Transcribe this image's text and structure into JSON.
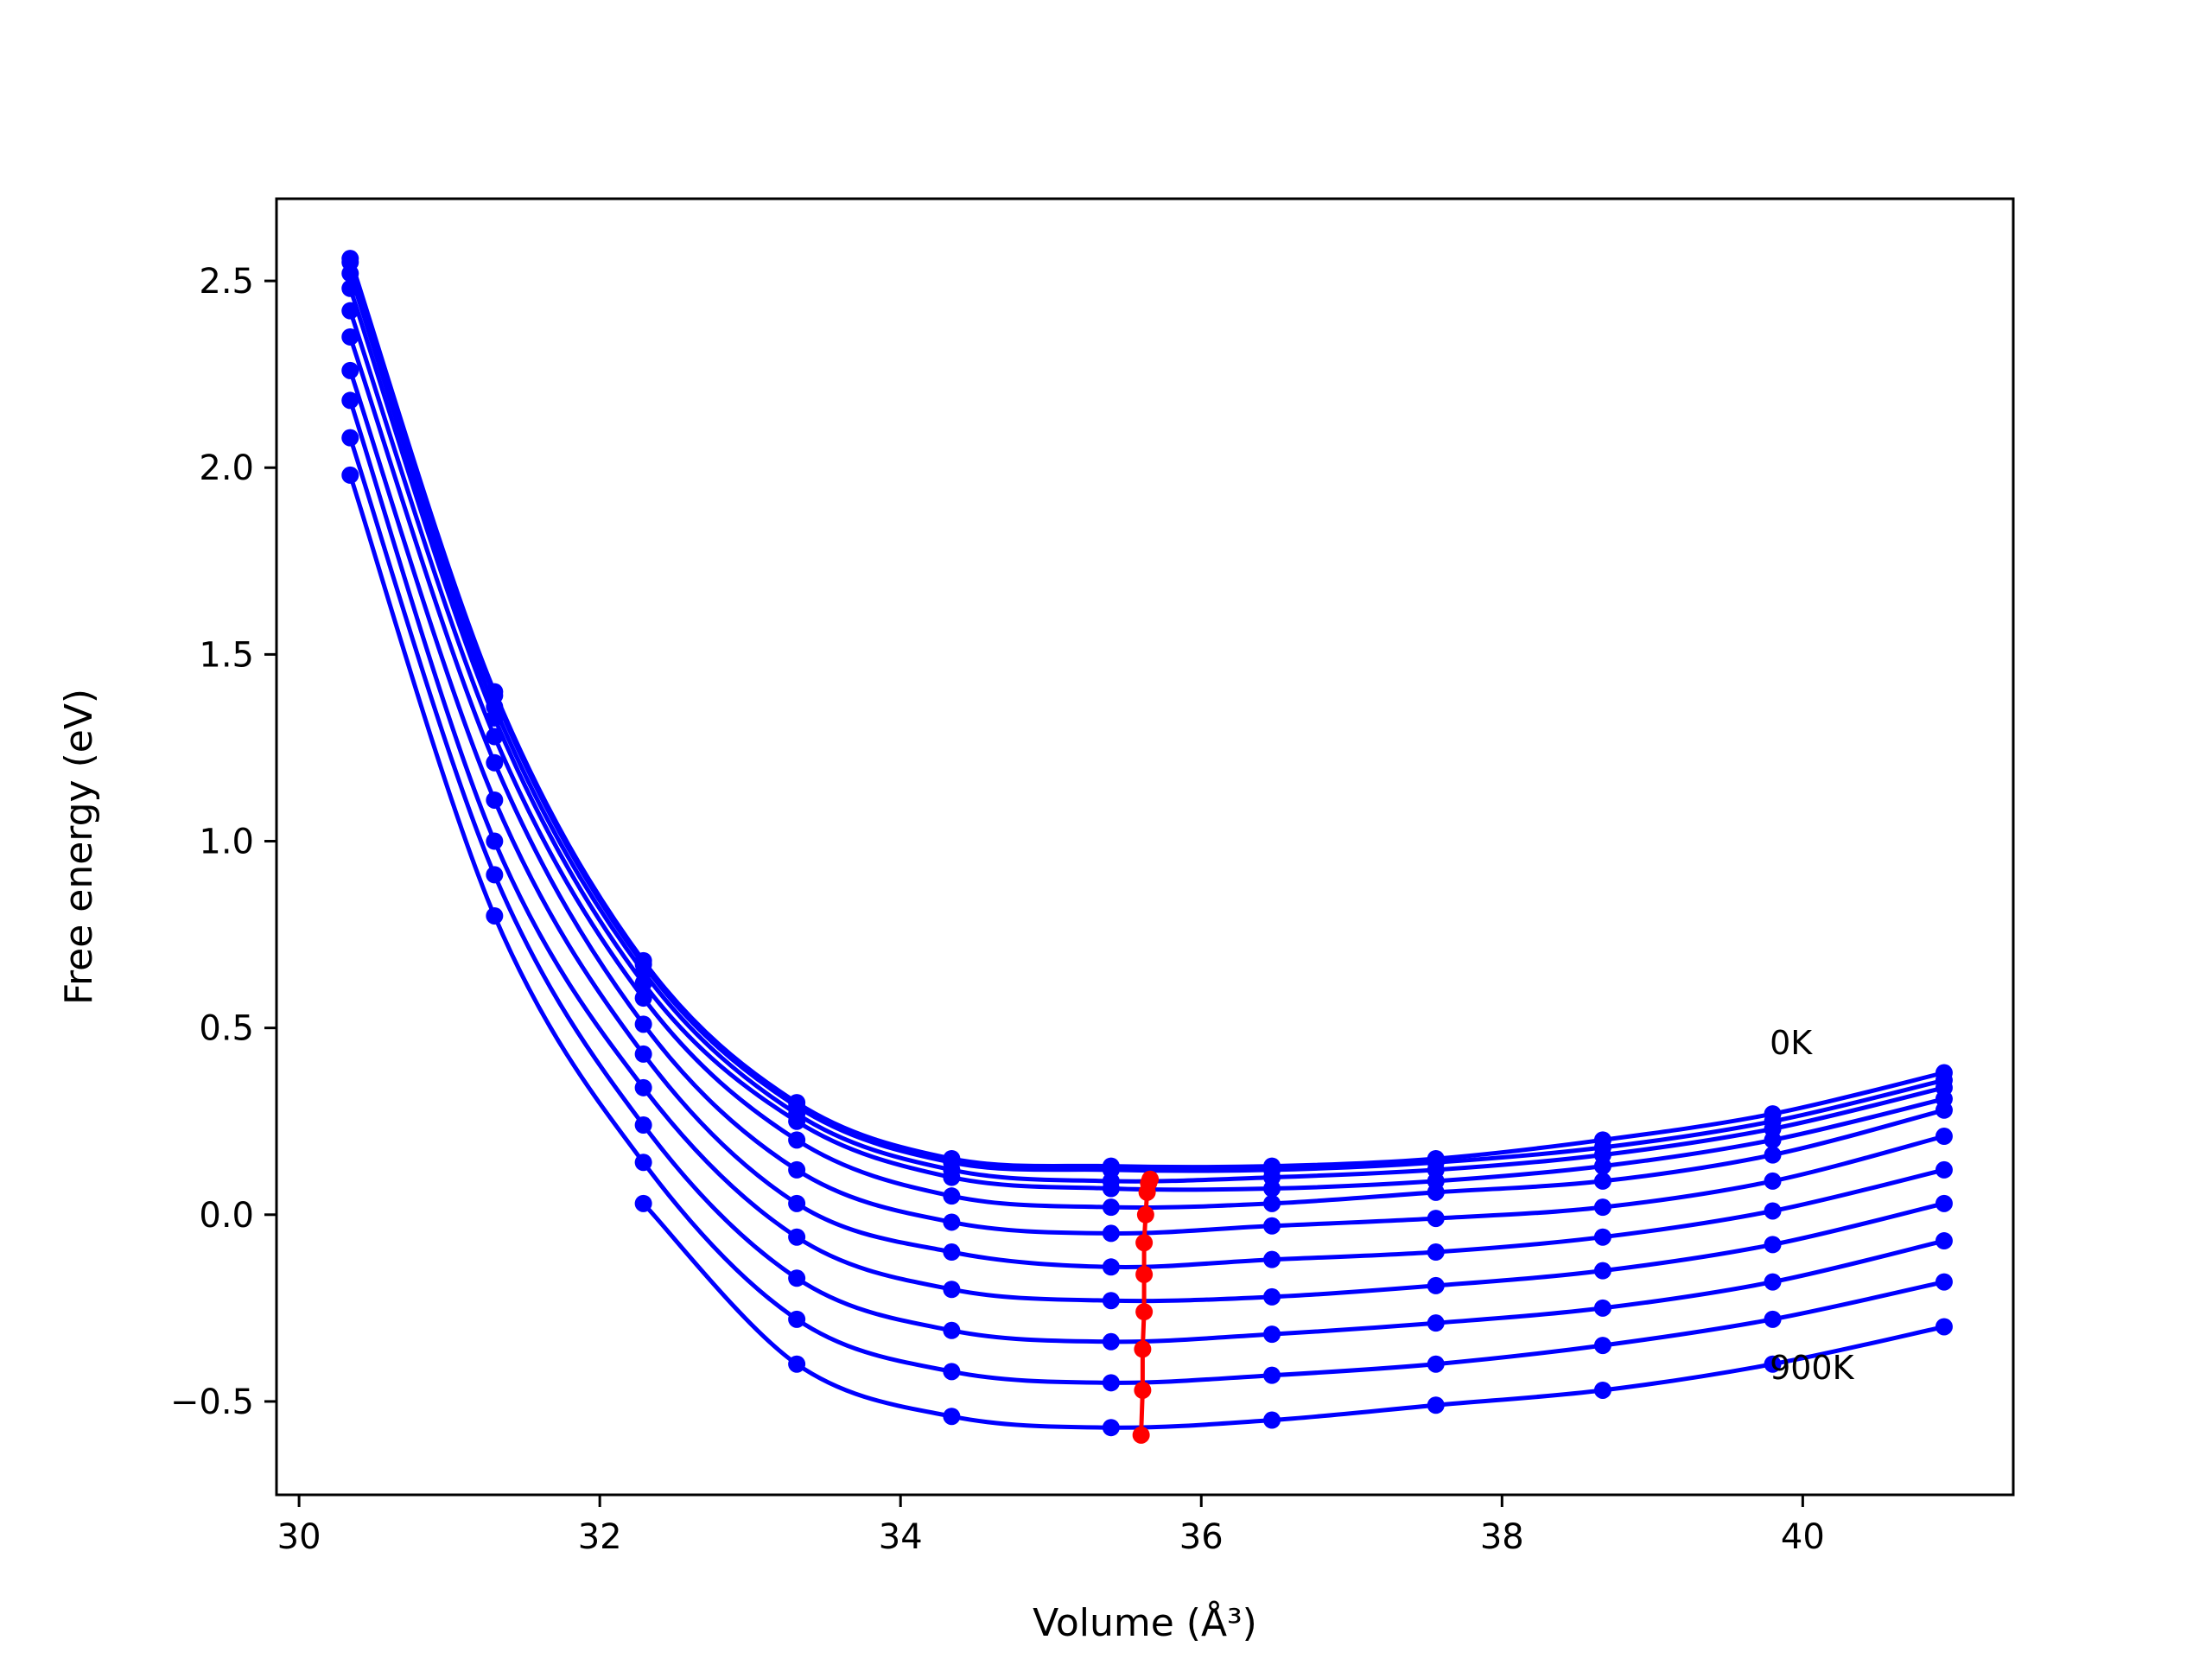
{
  "chart_data": {
    "type": "line",
    "xlabel": "Volume (Å³)",
    "ylabel": "Free energy (eV)",
    "xlim": [
      29.85,
      41.4
    ],
    "ylim": [
      -0.75,
      2.72
    ],
    "xticks": [
      30,
      32,
      34,
      36,
      38,
      40
    ],
    "yticks": [
      -0.5,
      0.0,
      0.5,
      1.0,
      1.5,
      2.0,
      2.5
    ],
    "xtick_labels": [
      "30",
      "32",
      "34",
      "36",
      "38",
      "40"
    ],
    "ytick_labels": [
      "−0.5",
      "0.0",
      "0.5",
      "1.0",
      "1.5",
      "2.0",
      "2.5"
    ],
    "grid": false,
    "volumes": [
      30.34,
      31.3,
      32.29,
      33.31,
      34.34,
      35.4,
      36.47,
      37.56,
      38.67,
      39.8,
      40.94
    ],
    "series": [
      {
        "values": [
          2.56,
          1.4,
          0.68,
          0.3,
          0.15,
          0.13,
          0.13,
          0.15,
          0.2,
          0.27,
          0.38
        ]
      },
      {
        "values": [
          2.55,
          1.39,
          0.67,
          0.29,
          0.14,
          0.12,
          0.12,
          0.14,
          0.18,
          0.25,
          0.36
        ]
      },
      {
        "values": [
          2.52,
          1.36,
          0.65,
          0.27,
          0.12,
          0.09,
          0.1,
          0.12,
          0.16,
          0.23,
          0.34
        ]
      },
      {
        "values": [
          2.48,
          1.33,
          0.62,
          0.25,
          0.1,
          0.07,
          0.07,
          0.09,
          0.13,
          0.2,
          0.31
        ]
      },
      {
        "values": [
          2.42,
          1.28,
          0.58,
          0.2,
          0.05,
          0.02,
          0.03,
          0.06,
          0.09,
          0.16,
          0.28
        ]
      },
      {
        "values": [
          2.35,
          1.21,
          0.51,
          0.12,
          -0.02,
          -0.05,
          -0.03,
          -0.01,
          0.02,
          0.09,
          0.21
        ]
      },
      {
        "values": [
          2.26,
          1.11,
          0.43,
          0.03,
          -0.1,
          -0.14,
          -0.12,
          -0.1,
          -0.06,
          0.01,
          0.12
        ]
      },
      {
        "values": [
          2.18,
          1.0,
          0.34,
          -0.06,
          -0.2,
          -0.23,
          -0.22,
          -0.19,
          -0.15,
          -0.08,
          0.03
        ]
      },
      {
        "values": [
          2.08,
          0.91,
          0.24,
          -0.17,
          -0.31,
          -0.34,
          -0.32,
          -0.29,
          -0.25,
          -0.18,
          -0.07
        ]
      },
      {
        "values": [
          1.98,
          0.8,
          0.14,
          -0.28,
          -0.42,
          -0.45,
          -0.43,
          -0.4,
          -0.35,
          -0.28,
          -0.18
        ]
      },
      {
        "values": [
          null,
          null,
          0.03,
          -0.4,
          -0.54,
          -0.57,
          -0.55,
          -0.51,
          -0.47,
          -0.4,
          -0.3
        ]
      }
    ],
    "curve_minima": {
      "color": "#ff0000",
      "points": [
        {
          "x": 35.66,
          "y": 0.095
        },
        {
          "x": 35.65,
          "y": 0.085
        },
        {
          "x": 35.64,
          "y": 0.06
        },
        {
          "x": 35.63,
          "y": 0.0
        },
        {
          "x": 35.62,
          "y": -0.075
        },
        {
          "x": 35.62,
          "y": -0.16
        },
        {
          "x": 35.62,
          "y": -0.26
        },
        {
          "x": 35.61,
          "y": -0.36
        },
        {
          "x": 35.61,
          "y": -0.47
        },
        {
          "x": 35.6,
          "y": -0.59
        }
      ]
    },
    "annotations": [
      {
        "text": "0K",
        "x": 39.78,
        "y": 0.43
      },
      {
        "text": "900K",
        "x": 39.78,
        "y": -0.44
      }
    ],
    "colors": {
      "series": "#0000ff",
      "minima": "#ff0000",
      "axes": "#000000"
    }
  }
}
